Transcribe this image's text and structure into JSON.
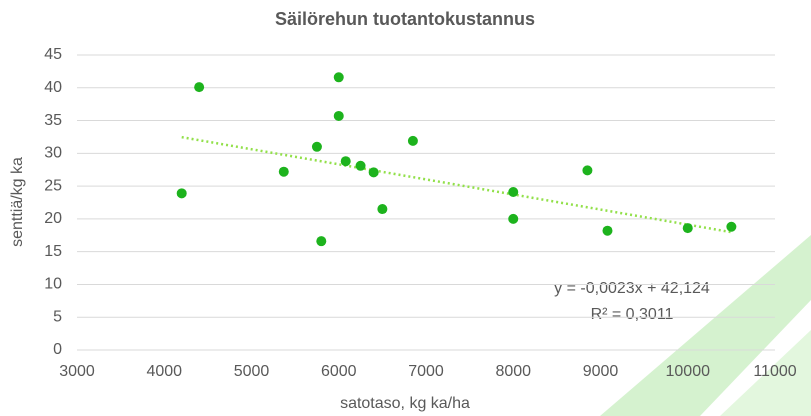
{
  "chart_data": {
    "type": "scatter",
    "title": "Säilörehun tuotantokustannus",
    "x_label": "satotaso, kg ka/ha",
    "y_label": "senttiä/kg ka",
    "x": [
      4200,
      4400,
      5370,
      5750,
      5800,
      6000,
      6000,
      6080,
      6250,
      6400,
      6500,
      6850,
      8000,
      8000,
      8850,
      9080,
      10000,
      10500
    ],
    "values": [
      23.9,
      40.1,
      27.2,
      31.0,
      16.6,
      41.6,
      35.7,
      28.8,
      28.1,
      27.1,
      21.5,
      31.9,
      24.1,
      20.0,
      27.4,
      18.2,
      18.6,
      18.8
    ],
    "color": "#1db31d",
    "trendline": {
      "x": [
        4200,
        10500
      ],
      "values": [
        32.464,
        17.974
      ],
      "color": "#92e04a",
      "equation": "y = -0,0023x + 42,124",
      "r_squared": "R² = 0,3011"
    },
    "xlim": [
      3000,
      11000
    ],
    "xticks": [
      3000,
      4000,
      5000,
      6000,
      7000,
      8000,
      9000,
      10000,
      11000
    ],
    "ylim": [
      0,
      45
    ],
    "yticks": [
      0,
      5,
      10,
      15,
      20,
      25,
      30,
      35,
      40,
      45
    ],
    "grid": true
  }
}
